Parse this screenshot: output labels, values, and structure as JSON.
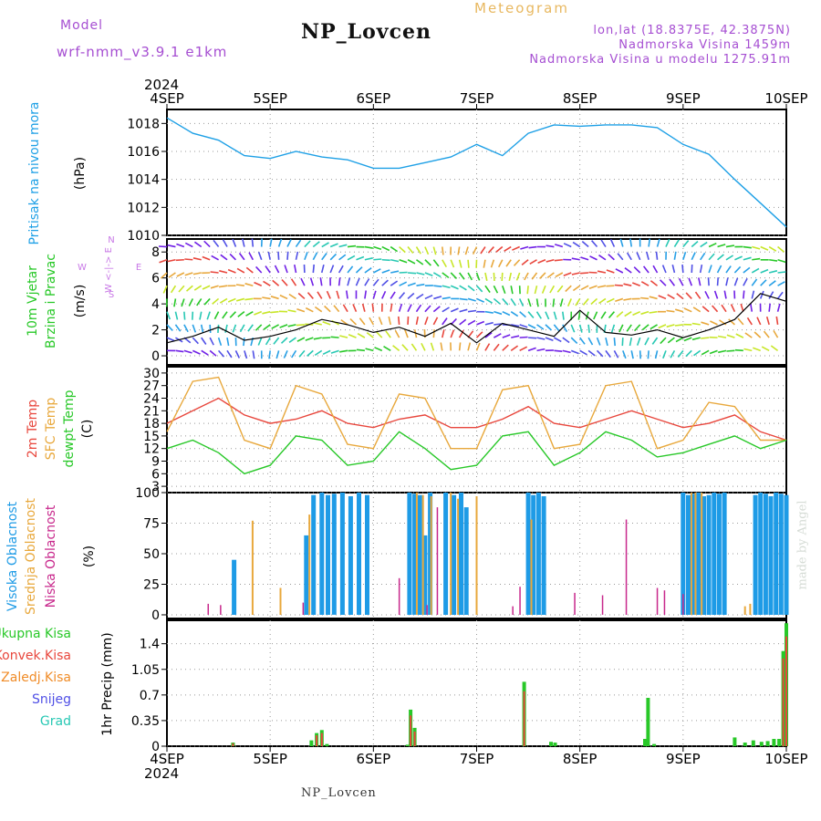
{
  "header": {
    "model_label": "Model",
    "model_name": "wrf-nmm_v3.9.1 e1km",
    "title": "NP_Lovcen",
    "meteogram_label": "Meteogram",
    "lonlat": "lon,lat (18.8375E, 42.3875N)",
    "elevation": "Nadmorska Visina 1459m",
    "model_elevation": "Nadmorska Visina u modelu 1275.91m"
  },
  "footer": {
    "station": "NP_Lovcen"
  },
  "watermark": "made by Angel",
  "colors": {
    "pressure": "#1ea0e6",
    "temp2m": "#e8463c",
    "sfc_temp": "#e8a83c",
    "dewpt": "#28c828",
    "cloud_high": "#1e9be6",
    "cloud_mid": "#e8a83c",
    "cloud_low": "#c8288c",
    "precip_total": "#28c828",
    "precip_conv": "#e8463c",
    "precip_frozen": "#f08c28",
    "snow": "#5050e6",
    "hail": "#28c8b4",
    "wind_label": "#28c828",
    "compass": "#c878e6"
  },
  "chart_data": [
    {
      "id": "pressure",
      "type": "line",
      "ylabel_lines": [
        "Pritisak na nivou mora",
        "(hPa)"
      ],
      "ylim": [
        1010,
        1019
      ],
      "yticks": [
        1010,
        1012,
        1014,
        1016,
        1018
      ],
      "grid": true,
      "x_top_labels": [
        "4SEP",
        "5SEP",
        "6SEP",
        "7SEP",
        "8SEP",
        "9SEP",
        "10SEP"
      ],
      "x_top_year": "2024",
      "series": [
        {
          "x": [
            0,
            0.25,
            0.5,
            0.75,
            1,
            1.25,
            1.5,
            1.75,
            2,
            2.25,
            2.5,
            2.75,
            3,
            3.25,
            3.5,
            3.75,
            4,
            4.25,
            4.5,
            4.75,
            5,
            5.25,
            5.5,
            5.75,
            6
          ],
          "values": [
            1018.4,
            1017.3,
            1016.8,
            1015.7,
            1015.5,
            1016.0,
            1015.6,
            1015.4,
            1014.8,
            1014.8,
            1015.2,
            1015.6,
            1016.5,
            1015.7,
            1017.3,
            1017.9,
            1017.8,
            1017.9,
            1017.9,
            1017.7,
            1016.5,
            1015.8,
            1014.0,
            1012.3,
            1010.6
          ]
        }
      ]
    },
    {
      "id": "wind",
      "type": "line",
      "ylabel_lines": [
        "10m Vjetar",
        "Brzina i Pravac",
        "(m/s)"
      ],
      "compass_labels": [
        "N",
        "E",
        "S",
        "W"
      ],
      "compass_text": "W <-|-> E",
      "ylim": [
        -0.7,
        9
      ],
      "yticks": [
        0,
        2,
        4,
        6,
        8
      ],
      "grid": true,
      "series": [
        {
          "name": "speed",
          "x": [
            0,
            0.25,
            0.5,
            0.75,
            1,
            1.25,
            1.5,
            1.75,
            2,
            2.25,
            2.5,
            2.75,
            3,
            3.25,
            3.5,
            3.75,
            4,
            4.25,
            4.5,
            4.75,
            5,
            5.25,
            5.5,
            5.75,
            6
          ],
          "values": [
            1.0,
            1.5,
            2.2,
            1.2,
            1.5,
            2.0,
            2.8,
            2.4,
            1.8,
            2.2,
            1.5,
            2.5,
            1.0,
            2.5,
            2.0,
            1.5,
            3.5,
            1.8,
            1.6,
            2.0,
            1.4,
            2.0,
            2.8,
            4.8,
            4.2
          ]
        }
      ]
    },
    {
      "id": "temperature",
      "type": "line",
      "ylabel_lines": [
        "2m Temp",
        "SFC Temp",
        "dewpt Temp",
        "(C)"
      ],
      "ylim": [
        1.5,
        31.5
      ],
      "yticks": [
        3,
        6,
        9,
        12,
        15,
        18,
        21,
        24,
        27,
        30
      ],
      "grid": true,
      "x": [
        0,
        0.25,
        0.5,
        0.75,
        1,
        1.25,
        1.5,
        1.75,
        2,
        2.25,
        2.5,
        2.75,
        3,
        3.25,
        3.5,
        3.75,
        4,
        4.25,
        4.5,
        4.75,
        5,
        5.25,
        5.5,
        5.75,
        6
      ],
      "series": [
        {
          "name": "2m Temp",
          "values": [
            18,
            21,
            24,
            20,
            18,
            19,
            21,
            18,
            17,
            19,
            20,
            17,
            17,
            19,
            22,
            18,
            17,
            19,
            21,
            19,
            17,
            18,
            20,
            16,
            14
          ]
        },
        {
          "name": "SFC Temp",
          "values": [
            16,
            28,
            29,
            14,
            12,
            27,
            25,
            13,
            12,
            25,
            24,
            12,
            12,
            26,
            27,
            12,
            13,
            27,
            28,
            12,
            14,
            23,
            22,
            14,
            14
          ]
        },
        {
          "name": "dewpt Temp",
          "values": [
            12,
            14,
            11,
            6,
            8,
            15,
            14,
            8,
            9,
            16,
            12,
            7,
            8,
            15,
            16,
            8,
            11,
            16,
            14,
            10,
            11,
            13,
            15,
            12,
            14
          ]
        }
      ]
    },
    {
      "id": "clouds",
      "type": "bar",
      "ylabel_lines": [
        "Visoka Oblacnost",
        "Srednja Oblacnost",
        "Niska Oblacnost",
        "(%)"
      ],
      "ylim": [
        -3,
        100
      ],
      "yticks": [
        0,
        25,
        50,
        75,
        100
      ],
      "grid": true,
      "series": [
        {
          "name": "Visoka Oblacnost",
          "x": [
            0.65,
            1.35,
            1.42,
            1.5,
            1.56,
            1.62,
            1.7,
            1.78,
            1.86,
            1.94,
            2.35,
            2.4,
            2.45,
            2.5,
            2.55,
            2.7,
            2.78,
            2.85,
            2.9,
            3.5,
            3.55,
            3.6,
            3.65,
            5.0,
            5.05,
            5.1,
            5.15,
            5.2,
            5.25,
            5.3,
            5.35,
            5.4,
            5.7,
            5.75,
            5.8,
            5.85,
            5.9,
            5.95,
            6.0
          ],
          "values": [
            45,
            65,
            98,
            100,
            98,
            99,
            100,
            97,
            100,
            98,
            100,
            99,
            98,
            65,
            100,
            100,
            98,
            100,
            88,
            100,
            98,
            100,
            97,
            100,
            98,
            99,
            100,
            97,
            98,
            100,
            99,
            100,
            98,
            100,
            99,
            97,
            100,
            99,
            98
          ]
        },
        {
          "name": "Srednja Oblacnost",
          "x": [
            0.83,
            1.1,
            1.38,
            2.42,
            2.48,
            2.56,
            2.75,
            2.82,
            3.0,
            3.53,
            5.08,
            5.12,
            5.18,
            5.6,
            5.65
          ],
          "values": [
            77,
            22,
            82,
            100,
            98,
            97,
            100,
            95,
            97,
            78,
            100,
            100,
            100,
            7,
            9
          ]
        },
        {
          "name": "Niska Oblacnost",
          "x": [
            0.4,
            0.52,
            1.32,
            2.25,
            2.52,
            2.62,
            3.35,
            3.42,
            3.95,
            4.22,
            4.45,
            4.75,
            4.82,
            5.0
          ],
          "values": [
            9,
            8,
            10,
            30,
            8,
            88,
            7,
            23,
            18,
            16,
            78,
            22,
            20,
            17
          ]
        }
      ]
    },
    {
      "id": "precip",
      "type": "bar",
      "ylabel_lines": [
        "1hr Precip (mm)"
      ],
      "legend": [
        "Ukupna Kisa",
        "Konvek.Kisa",
        "Zaledj.Kisa",
        "Snijeg",
        "Grad"
      ],
      "ylim": [
        0,
        1.72
      ],
      "yticks": [
        0,
        0.35,
        0.7,
        1.05,
        1.4
      ],
      "ytick_labels": [
        "0",
        "0.35",
        "0.7",
        "1.05",
        "1.4"
      ],
      "grid": true,
      "x_bottom_labels": [
        "4SEP",
        "5SEP",
        "6SEP",
        "7SEP",
        "8SEP",
        "9SEP",
        "10SEP"
      ],
      "x_bottom_year": "2024",
      "series": [
        {
          "name": "Ukupna Kisa",
          "x": [
            0.64,
            1.4,
            1.45,
            1.5,
            1.55,
            2.33,
            2.36,
            2.4,
            3.46,
            3.72,
            3.76,
            4.63,
            4.66,
            4.72,
            5.5,
            5.6,
            5.68,
            5.76,
            5.82,
            5.88,
            5.93,
            5.97,
            6.0
          ],
          "values": [
            0.05,
            0.08,
            0.18,
            0.22,
            0.03,
            0.02,
            0.5,
            0.25,
            0.88,
            0.06,
            0.05,
            0.1,
            0.66,
            0.03,
            0.12,
            0.05,
            0.08,
            0.06,
            0.07,
            0.1,
            0.1,
            1.3,
            1.68
          ]
        },
        {
          "name": "Konvek.Kisa",
          "x": [
            0.64,
            1.45,
            1.5,
            2.36,
            2.4,
            3.46,
            5.97,
            6.0
          ],
          "values": [
            0.04,
            0.15,
            0.18,
            0.42,
            0.2,
            0.75,
            1.2,
            1.5
          ]
        }
      ]
    }
  ]
}
